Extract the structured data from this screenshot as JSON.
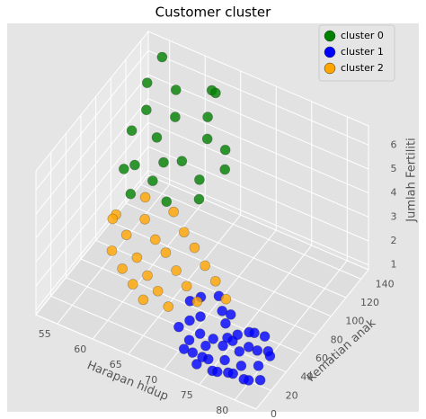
{
  "chart_data": {
    "type": "scatter3d",
    "title": "Customer cluster",
    "x_label": "Harapan hidup",
    "y_label": "Kematian anak",
    "z_label": "Jumlah Fertiliti",
    "xlim": [
      52,
      83
    ],
    "ylim": [
      0,
      150
    ],
    "zlim": [
      0.8,
      6.8
    ],
    "xticks": [
      55,
      60,
      65,
      70,
      75,
      80
    ],
    "yticks": [
      0,
      20,
      40,
      60,
      80,
      100,
      120,
      140
    ],
    "zticks": [
      1,
      2,
      3,
      4,
      5,
      6
    ],
    "grid": true,
    "legend": "upper right",
    "series": [
      {
        "name": "cluster 0",
        "color": "#008000",
        "x": [
          55,
          58,
          62,
          57,
          60,
          63,
          56,
          59,
          64,
          61,
          58,
          66,
          62,
          57,
          65,
          60,
          67,
          63,
          59,
          66,
          55,
          62
        ],
        "y": [
          120,
          130,
          140,
          100,
          110,
          125,
          90,
          95,
          115,
          85,
          75,
          120,
          100,
          70,
          95,
          80,
          110,
          70,
          60,
          85,
          140,
          145
        ],
        "z": [
          6.2,
          5.9,
          6.0,
          6.1,
          5.8,
          5.6,
          5.5,
          5.4,
          5.2,
          5.0,
          4.9,
          4.8,
          4.6,
          4.8,
          4.4,
          4.3,
          4.5,
          4.2,
          4.4,
          4.1,
          6.5,
          5.7
        ]
      },
      {
        "name": "cluster 1",
        "color": "#0000ff",
        "x": [
          70,
          72,
          74,
          71,
          73,
          75,
          76,
          78,
          72,
          74,
          76,
          78,
          80,
          73,
          75,
          77,
          79,
          81,
          74,
          76,
          78,
          80,
          82,
          77,
          79,
          81,
          71,
          73,
          75,
          77,
          79,
          81,
          70,
          72,
          74,
          76,
          78,
          80,
          82,
          75
        ],
        "y": [
          35,
          30,
          40,
          25,
          20,
          35,
          28,
          38,
          15,
          18,
          22,
          25,
          30,
          10,
          12,
          15,
          18,
          22,
          6,
          8,
          10,
          12,
          15,
          5,
          7,
          9,
          40,
          45,
          42,
          32,
          28,
          35,
          20,
          8,
          28,
          35,
          45,
          40,
          28,
          4
        ],
        "z": [
          2.3,
          2.1,
          2.2,
          2.0,
          1.9,
          2.0,
          1.8,
          1.9,
          1.7,
          1.6,
          1.7,
          1.6,
          1.7,
          1.5,
          1.4,
          1.5,
          1.4,
          1.5,
          1.3,
          1.2,
          1.3,
          1.2,
          1.3,
          1.4,
          1.5,
          1.4,
          2.4,
          2.5,
          2.1,
          1.9,
          1.8,
          1.6,
          1.8,
          1.6,
          1.5,
          1.4,
          1.6,
          1.9,
          1.8,
          1.8
        ]
      },
      {
        "name": "cluster 2",
        "color": "#ffa500",
        "x": [
          58,
          61,
          64,
          60,
          63,
          66,
          59,
          62,
          65,
          68,
          61,
          64,
          67,
          70,
          63,
          66,
          69,
          72,
          65,
          68,
          71,
          74,
          60,
          57
        ],
        "y": [
          50,
          60,
          70,
          45,
          55,
          65,
          35,
          40,
          50,
          60,
          30,
          35,
          45,
          55,
          25,
          30,
          40,
          50,
          20,
          25,
          35,
          45,
          70,
          55
        ],
        "z": [
          3.8,
          3.6,
          3.9,
          3.4,
          3.2,
          3.5,
          3.0,
          2.9,
          3.1,
          3.3,
          2.7,
          2.6,
          2.8,
          3.0,
          2.5,
          2.4,
          2.6,
          2.8,
          2.3,
          2.2,
          2.4,
          2.5,
          4.0,
          3.3
        ]
      }
    ]
  }
}
